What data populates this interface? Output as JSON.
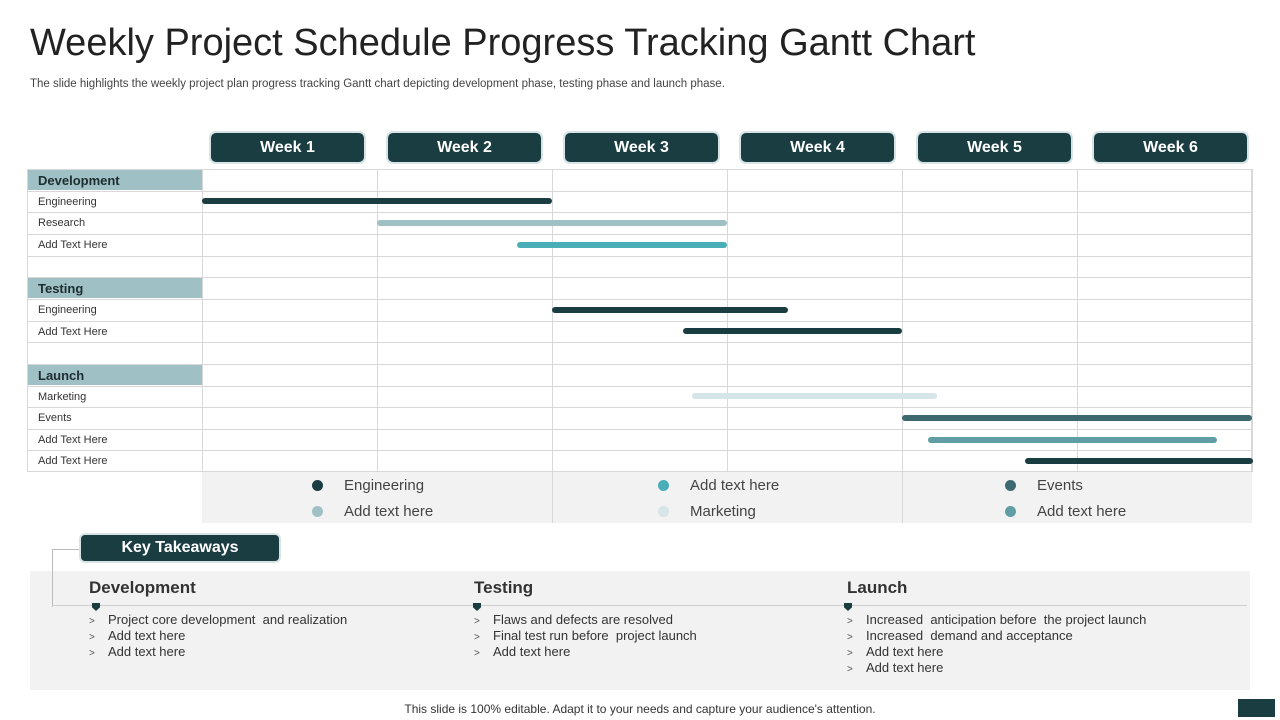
{
  "title": "Weekly Project Schedule Progress Tracking Gantt Chart",
  "subtitle": "The slide highlights the weekly project plan progress tracking Gantt chart depicting development phase, testing phase and launch phase.",
  "chart_data": {
    "type": "gantt",
    "weeks": [
      "Week 1",
      "Week 2",
      "Week 3",
      "Week 4",
      "Week 5",
      "Week 6"
    ],
    "groups": [
      {
        "name": "Development",
        "tasks": [
          {
            "label": "Engineering",
            "start": 0.0,
            "end": 2.0,
            "color": "#1a3d42"
          },
          {
            "label": "Research",
            "start": 1.0,
            "end": 3.0,
            "color": "#9fc0c5"
          },
          {
            "label": "Add Text Here",
            "start": 1.8,
            "end": 3.0,
            "color": "#4aaeb8"
          }
        ]
      },
      {
        "name": "Testing",
        "tasks": [
          {
            "label": "Engineering",
            "start": 2.0,
            "end": 3.35,
            "color": "#1a3d42"
          },
          {
            "label": "Add Text Here",
            "start": 2.75,
            "end": 4.0,
            "color": "#1a3d42"
          }
        ]
      },
      {
        "name": "Launch",
        "tasks": [
          {
            "label": "Marketing",
            "start": 2.8,
            "end": 4.2,
            "color": "#d5e5e8"
          },
          {
            "label": "Events",
            "start": 4.0,
            "end": 6.0,
            "color": "#3d6a70"
          },
          {
            "label": "Add Text Here",
            "start": 4.15,
            "end": 5.8,
            "color": "#5f9ea4"
          },
          {
            "label": "Add Text Here",
            "start": 4.7,
            "end": 6.0,
            "color": "#1a3d42"
          }
        ]
      }
    ],
    "legend": [
      {
        "label": "Engineering",
        "color": "#1a3d42"
      },
      {
        "label": "Add text here",
        "color": "#9fc0c5"
      },
      {
        "label": "Add text here",
        "color": "#4aaeb8"
      },
      {
        "label": "Marketing",
        "color": "#d5e5e8"
      },
      {
        "label": "Events",
        "color": "#3d6a70"
      },
      {
        "label": "Add text here",
        "color": "#5f9ea4"
      }
    ]
  },
  "takeaways": {
    "label": "Key Takeaways",
    "columns": [
      {
        "heading": "Development",
        "items": [
          "Project core development  and realization",
          "Add text here",
          "Add text here"
        ]
      },
      {
        "heading": "Testing",
        "items": [
          "Flaws and defects are resolved",
          "Final test run before  project launch",
          "Add text here"
        ]
      },
      {
        "heading": "Launch",
        "items": [
          "Increased  anticipation before  the project launch",
          "Increased  demand and acceptance",
          "Add text here",
          "Add text here"
        ]
      }
    ]
  },
  "footer": "This slide is 100% editable. Adapt it to your needs and capture your audience's attention."
}
